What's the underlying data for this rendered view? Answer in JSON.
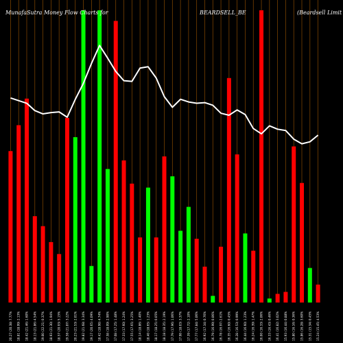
{
  "header": {
    "brand_title": "MunafaSutra  Money Flow  Charts for",
    "symbol": "BEARDSELL_BE",
    "company": "(Beardsell Limit"
  },
  "chart_data": {
    "type": "bar",
    "title": "MunafaSutra  Money Flow  Charts for BEARDSELL_BE",
    "xlabel": "",
    "ylabel": "",
    "ylim": [
      0,
      440
    ],
    "line_ylim": [
      0,
      440
    ],
    "grid": "vertical",
    "colors": {
      "up": "#00ff00",
      "down": "#ff0000",
      "line": "#ffffff",
      "grid": "#8a4a00",
      "background": "#000000"
    },
    "bars": [
      {
        "label": "20.27 (20.38) 7.77%",
        "value": 228,
        "dir": "down"
      },
      {
        "label": "18.81 (18.99) 2.13%",
        "value": 267,
        "dir": "down"
      },
      {
        "label": "18.42 (21.46) 1.60%",
        "value": 307,
        "dir": "down"
      },
      {
        "label": "18.13 (21.86) 4.54%",
        "value": 130,
        "dir": "down"
      },
      {
        "label": "19.00 (22.21) 0.37%",
        "value": 115,
        "dir": "down"
      },
      {
        "label": "18.93 (21.30) 1.94%",
        "value": 91,
        "dir": "down"
      },
      {
        "label": "18.57 (20.93) 5.15%",
        "value": 73,
        "dir": "down"
      },
      {
        "label": "19.58 (21.87) 3.22%",
        "value": 278,
        "dir": "down"
      },
      {
        "label": "20.23 (21.53) 2.01%",
        "value": 249,
        "dir": "up"
      },
      {
        "label": "19.82 (21.68) 3.34%",
        "value": 440,
        "dir": "up"
      },
      {
        "label": "19.17 (20.65) 4.09%",
        "value": 55,
        "dir": "up"
      },
      {
        "label": "18.42 (18.98) 4.74%",
        "value": 440,
        "dir": "up"
      },
      {
        "label": "17.58 (18.09) 2.90%",
        "value": 201,
        "dir": "up"
      },
      {
        "label": "17.08 (17.25) 1.48%",
        "value": 424,
        "dir": "down"
      },
      {
        "label": "17.33 (17.60) 1.24%",
        "value": 214,
        "dir": "down"
      },
      {
        "label": "17.55 (17.65) 3.25%",
        "value": 179,
        "dir": "down"
      },
      {
        "label": "18.14 (18.86) 1.40%",
        "value": 98,
        "dir": "down"
      },
      {
        "label": "18.40 (18.65) 1.23%",
        "value": 173,
        "dir": "up"
      },
      {
        "label": "18.17 (18.25) 0.05%",
        "value": 98,
        "dir": "down"
      },
      {
        "label": "18.18 (18.35) 2.19%",
        "value": 220,
        "dir": "down"
      },
      {
        "label": "17.79 (17.96) 1.06%",
        "value": 190,
        "dir": "up"
      },
      {
        "label": "17.98 (18.03) 3.37%",
        "value": 108,
        "dir": "up"
      },
      {
        "label": "17.39 (17.72) 2.10%",
        "value": 144,
        "dir": "up"
      },
      {
        "label": "17.77 (17.84) 5.06%",
        "value": 96,
        "dir": "down"
      },
      {
        "label": "16.92 (17.34) 0.76%",
        "value": 54,
        "dir": "down"
      },
      {
        "label": "16.79 (16.99) 0.06%",
        "value": 10,
        "dir": "up"
      },
      {
        "label": "16.78 (16.97) 2.61%",
        "value": 84,
        "dir": "down"
      },
      {
        "label": "16.35 (16.60) 0.45%",
        "value": 338,
        "dir": "down"
      },
      {
        "label": "16.28 (16.53) 0.99%",
        "value": 223,
        "dir": "down"
      },
      {
        "label": "16.44 (16.60) 1.23%",
        "value": 104,
        "dir": "up"
      },
      {
        "label": "16.24 (16.39) 1.47%",
        "value": 78,
        "dir": "down"
      },
      {
        "label": "16.00 (16.33) 2.06%",
        "value": 440,
        "dir": "down"
      },
      {
        "label": "16.33 (16.43) 0.46%",
        "value": 6,
        "dir": "up"
      },
      {
        "label": "16.41 (16.82) 3.02%",
        "value": 13,
        "dir": "down"
      },
      {
        "label": "15.93 (16.44) 0.88%",
        "value": 16,
        "dir": "down"
      },
      {
        "label": "15.80 (16.16) 0.36%",
        "value": 235,
        "dir": "down"
      },
      {
        "label": "15.86 (16.28) 3.60%",
        "value": 180,
        "dir": "down"
      },
      {
        "label": "15.31 (15.34) 0.45%",
        "value": 52,
        "dir": "up"
      },
      {
        "label": "15.24 (15.45) 4.53%",
        "value": 27,
        "dir": "down"
      }
    ],
    "line_values": [
      308,
      304,
      300,
      289,
      284,
      286,
      287,
      279,
      306,
      330,
      360,
      387,
      368,
      348,
      334,
      333,
      353,
      355,
      338,
      310,
      294,
      306,
      302,
      300,
      301,
      297,
      285,
      282,
      290,
      283,
      262,
      254,
      266,
      261,
      259,
      246,
      239,
      242,
      252
    ]
  }
}
